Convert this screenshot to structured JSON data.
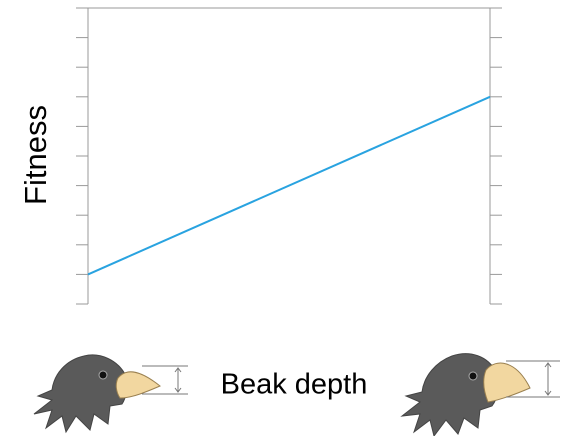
{
  "chart_data": {
    "type": "line",
    "y_label": "Fitness",
    "x_label": "Beak depth",
    "x": [
      0,
      1
    ],
    "xlim": [
      0,
      1
    ],
    "series": [
      {
        "color": "#29a3e0",
        "values": [
          1,
          7
        ]
      }
    ],
    "ylim": [
      0,
      10
    ],
    "yticks": [
      0,
      1,
      2,
      3,
      4,
      5,
      6,
      7,
      8,
      9,
      10
    ]
  }
}
